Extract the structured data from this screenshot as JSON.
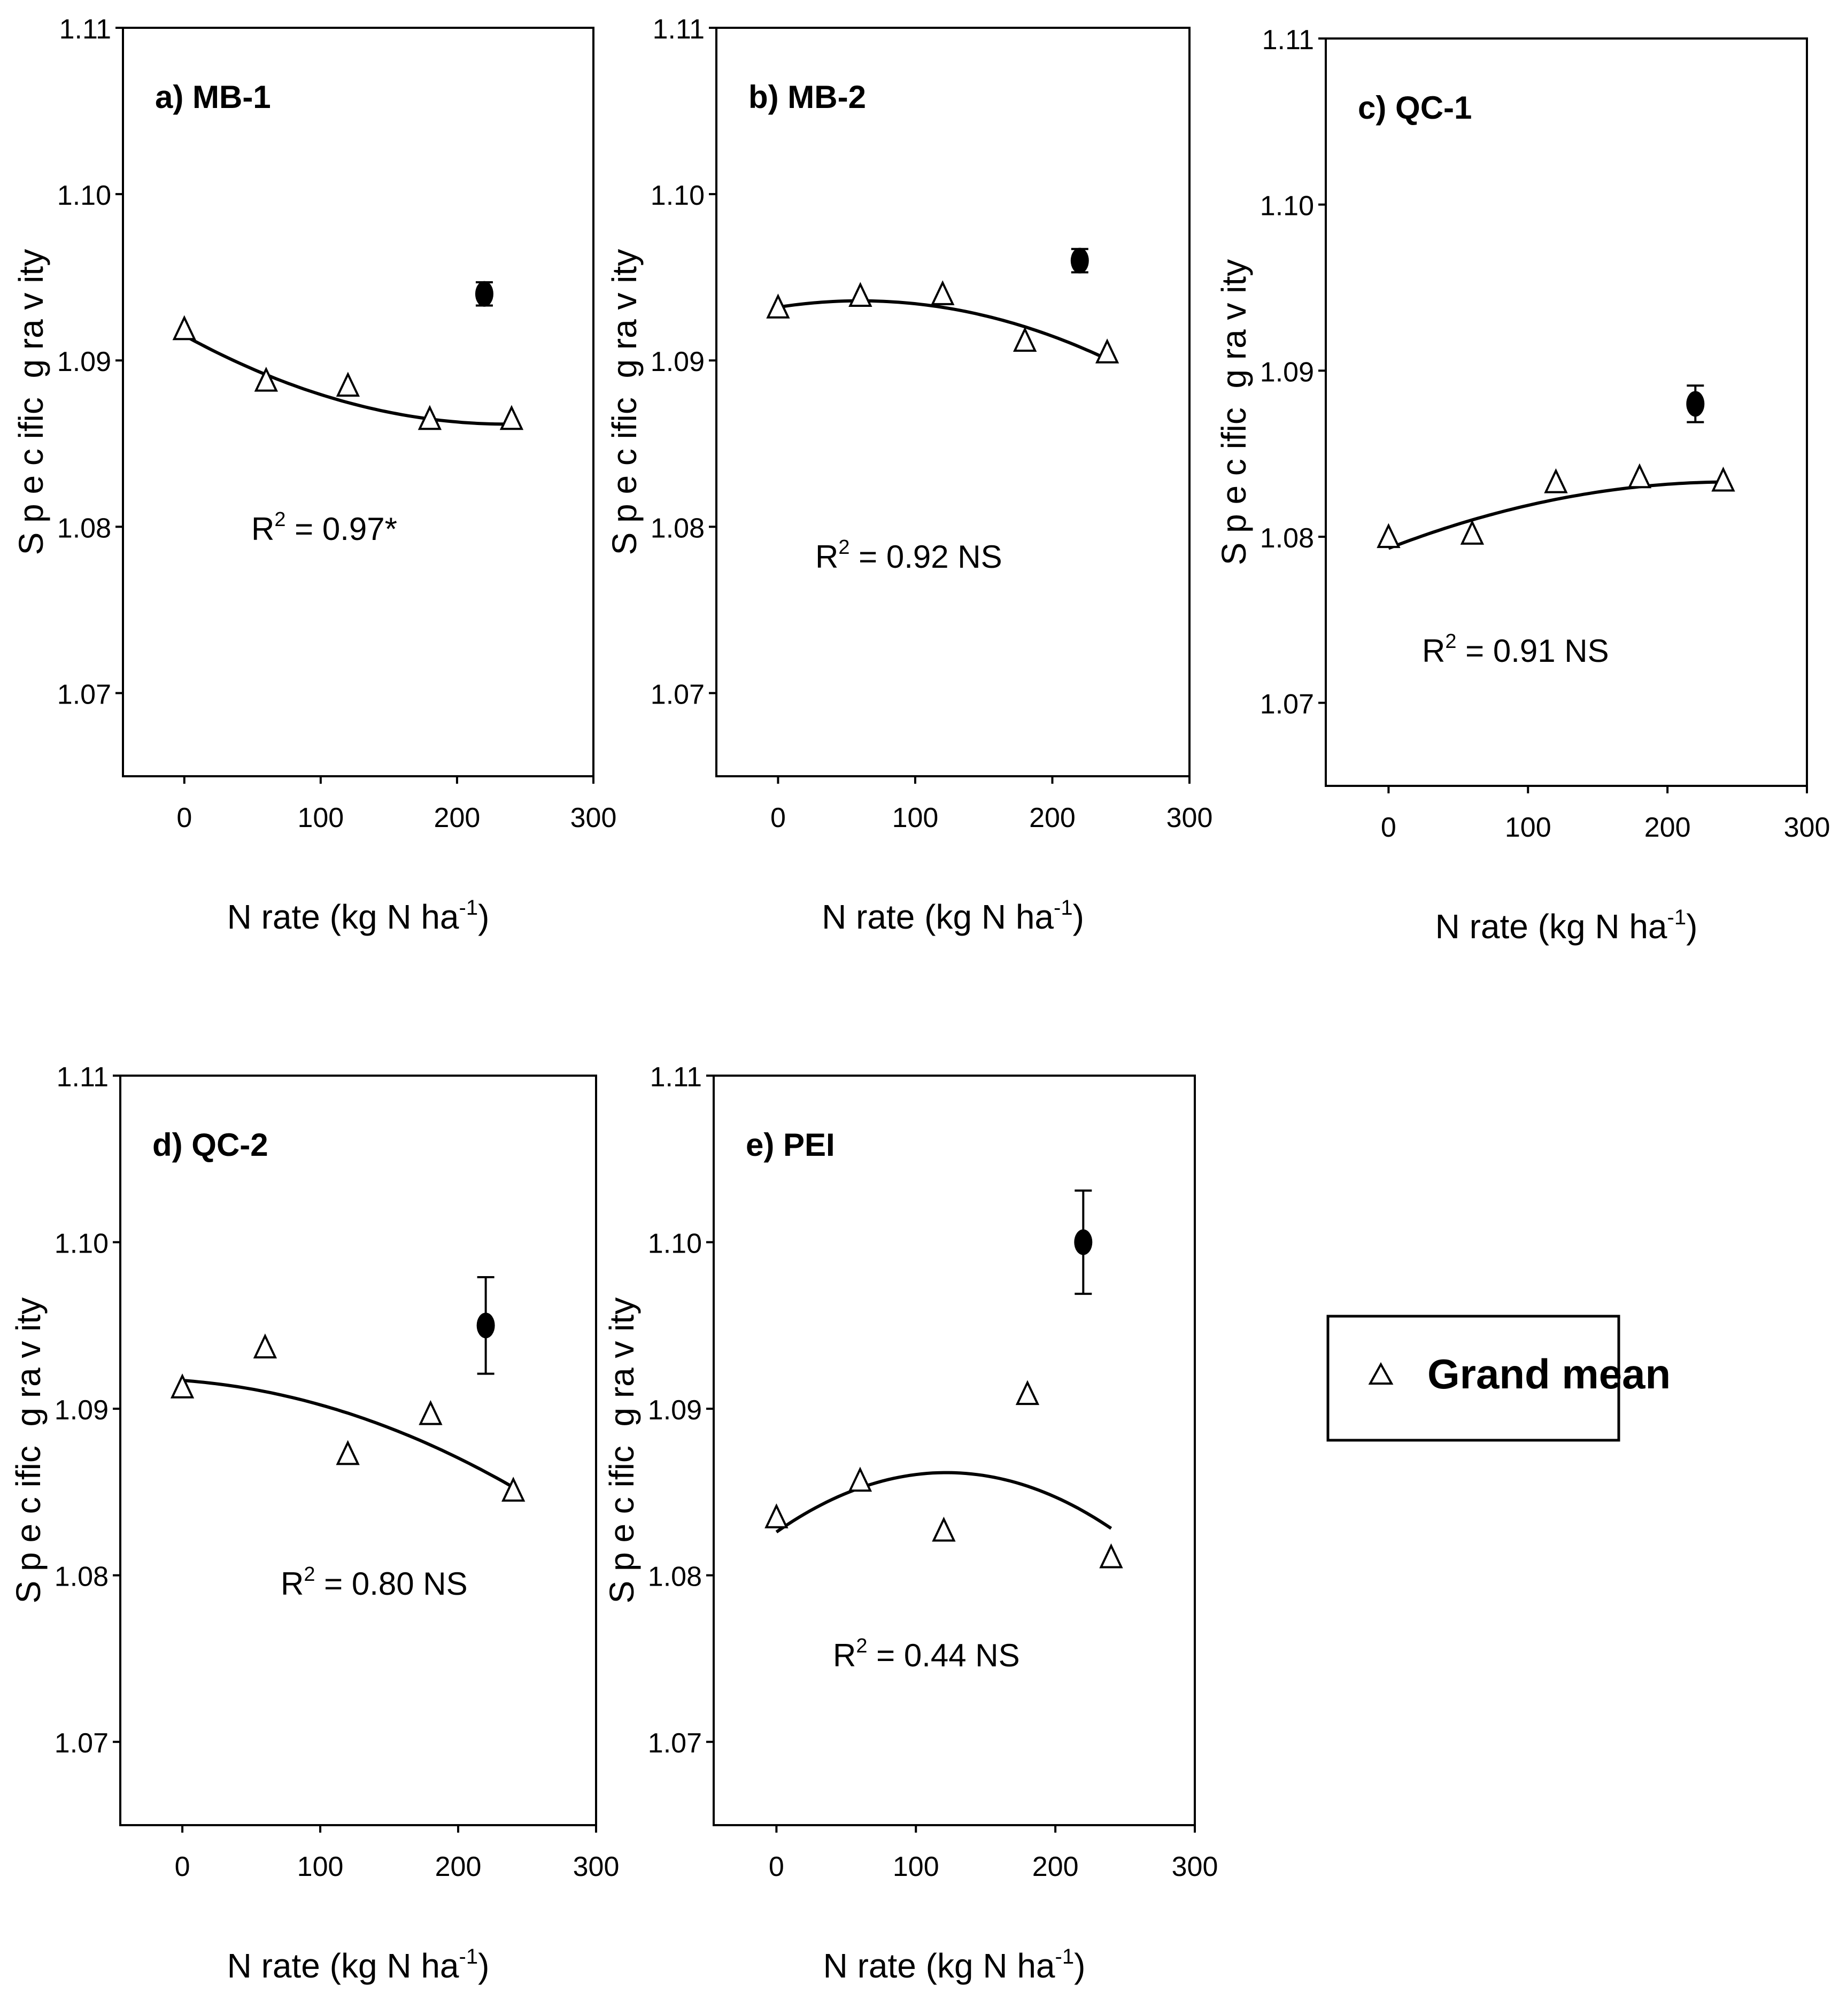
{
  "legend": {
    "label": "Grand mean",
    "symbol": "open-triangle"
  },
  "chart_data": [
    {
      "type": "scatter",
      "panel_label": "a) MB-1",
      "xlabel": "N rate (kg N ha",
      "xlabel_sup": "-1",
      "xlabel_end": ")",
      "ylabel": "S p e c ific  g ra v ity",
      "xlim": [
        -45,
        300
      ],
      "ylim": [
        1.065,
        1.11
      ],
      "xticks": [
        "0",
        "100",
        "200",
        "300"
      ],
      "yticks": [
        "1.07",
        "1.08",
        "1.09",
        "1.10",
        "1.11"
      ],
      "series": [
        {
          "name": "Grand mean",
          "x": [
            0,
            60,
            120,
            180,
            240
          ],
          "y": [
            1.0918,
            1.0887,
            1.0884,
            1.0864,
            1.0864
          ]
        }
      ],
      "control": {
        "x": 220,
        "y": 1.094,
        "err": 0.0007
      },
      "fit": {
        "coeffs": [
          1.0915,
          -4.5e-05,
          9.5e-08
        ],
        "x_range": [
          0,
          240
        ]
      },
      "r2_pre": "R",
      "r2_sup": "2",
      "r2_text": " = 0.97*"
    },
    {
      "type": "scatter",
      "panel_label": "b) MB-2",
      "xlabel": "N rate (kg N ha",
      "xlabel_sup": "-1",
      "xlabel_end": ")",
      "ylabel": "S p e c ific  g ra v ity",
      "xlim": [
        -45,
        300
      ],
      "ylim": [
        1.065,
        1.11
      ],
      "xticks": [
        "0",
        "100",
        "200",
        "300"
      ],
      "yticks": [
        "1.07",
        "1.08",
        "1.09",
        "1.10",
        "1.11"
      ],
      "series": [
        {
          "name": "Grand mean",
          "x": [
            0,
            60,
            120,
            180,
            240
          ],
          "y": [
            1.0931,
            1.0938,
            1.0939,
            1.0911,
            1.0904
          ]
        }
      ],
      "control": {
        "x": 220,
        "y": 1.096,
        "err": 0.0007
      },
      "fit": {
        "coeffs": [
          1.0932,
          1.29e-05,
          -1.08e-07
        ],
        "x_range": [
          0,
          240
        ]
      },
      "r2_pre": "R",
      "r2_sup": "2",
      "r2_text": " = 0.92 NS"
    },
    {
      "type": "scatter",
      "panel_label": "c) QC-1",
      "xlabel": "N rate (kg N ha",
      "xlabel_sup": "-1",
      "xlabel_end": ")",
      "ylabel": "S p e c ific  g ra v ity",
      "xlim": [
        -45,
        300
      ],
      "ylim": [
        1.065,
        1.11
      ],
      "xticks": [
        "0",
        "100",
        "200",
        "300"
      ],
      "yticks": [
        "1.07",
        "1.08",
        "1.09",
        "1.10",
        "1.11"
      ],
      "series": [
        {
          "name": "Grand mean",
          "x": [
            0,
            60,
            120,
            180,
            240
          ],
          "y": [
            1.0799,
            1.0801,
            1.0832,
            1.0835,
            1.0833
          ]
        }
      ],
      "control": {
        "x": 220,
        "y": 1.088,
        "err": 0.0011
      },
      "fit": {
        "coeffs": [
          1.0793,
          3.25e-05,
          -6.6e-08
        ],
        "x_range": [
          0,
          240
        ]
      },
      "r2_pre": "R",
      "r2_sup": "2",
      "r2_text": " = 0.91 NS"
    },
    {
      "type": "scatter",
      "panel_label": "d) QC-2",
      "xlabel": "N rate (kg N ha",
      "xlabel_sup": "-1",
      "xlabel_end": ")",
      "ylabel": "S p e c ific  g ra v ity",
      "xlim": [
        -45,
        300
      ],
      "ylim": [
        1.065,
        1.11
      ],
      "xticks": [
        "0",
        "100",
        "200",
        "300"
      ],
      "yticks": [
        "1.07",
        "1.08",
        "1.09",
        "1.10",
        "1.11"
      ],
      "series": [
        {
          "name": "Grand mean",
          "x": [
            0,
            60,
            120,
            180,
            240
          ],
          "y": [
            1.0912,
            1.0936,
            1.0872,
            1.0896,
            1.085
          ]
        }
      ],
      "control": {
        "x": 220,
        "y": 1.095,
        "err": 0.0029
      },
      "fit": {
        "coeffs": [
          1.0917,
          -6e-06,
          -8.64e-08
        ],
        "x_range": [
          0,
          240
        ]
      },
      "r2_pre": "R",
      "r2_sup": "2",
      "r2_text": " = 0.80 NS"
    },
    {
      "type": "scatter",
      "panel_label": "e) PEI",
      "xlabel": "N rate (kg N ha",
      "xlabel_sup": "-1",
      "xlabel_end": ")",
      "ylabel": "S p e c ific  g ra v ity",
      "xlim": [
        -45,
        300
      ],
      "ylim": [
        1.065,
        1.11
      ],
      "xticks": [
        "0",
        "100",
        "200",
        "300"
      ],
      "yticks": [
        "1.07",
        "1.08",
        "1.09",
        "1.10",
        "1.11"
      ],
      "series": [
        {
          "name": "Grand mean",
          "x": [
            0,
            60,
            120,
            180,
            240
          ],
          "y": [
            1.0834,
            1.0856,
            1.0826,
            1.0908,
            1.081
          ]
        }
      ],
      "control": {
        "x": 220,
        "y": 1.1,
        "err": 0.0031
      },
      "fit": {
        "coeffs": [
          1.0826,
          5.85e-05,
          -2.4e-07
        ],
        "x_range": [
          0,
          240
        ]
      },
      "r2_pre": "R",
      "r2_sup": "2",
      "r2_text": " = 0.44 NS"
    }
  ]
}
